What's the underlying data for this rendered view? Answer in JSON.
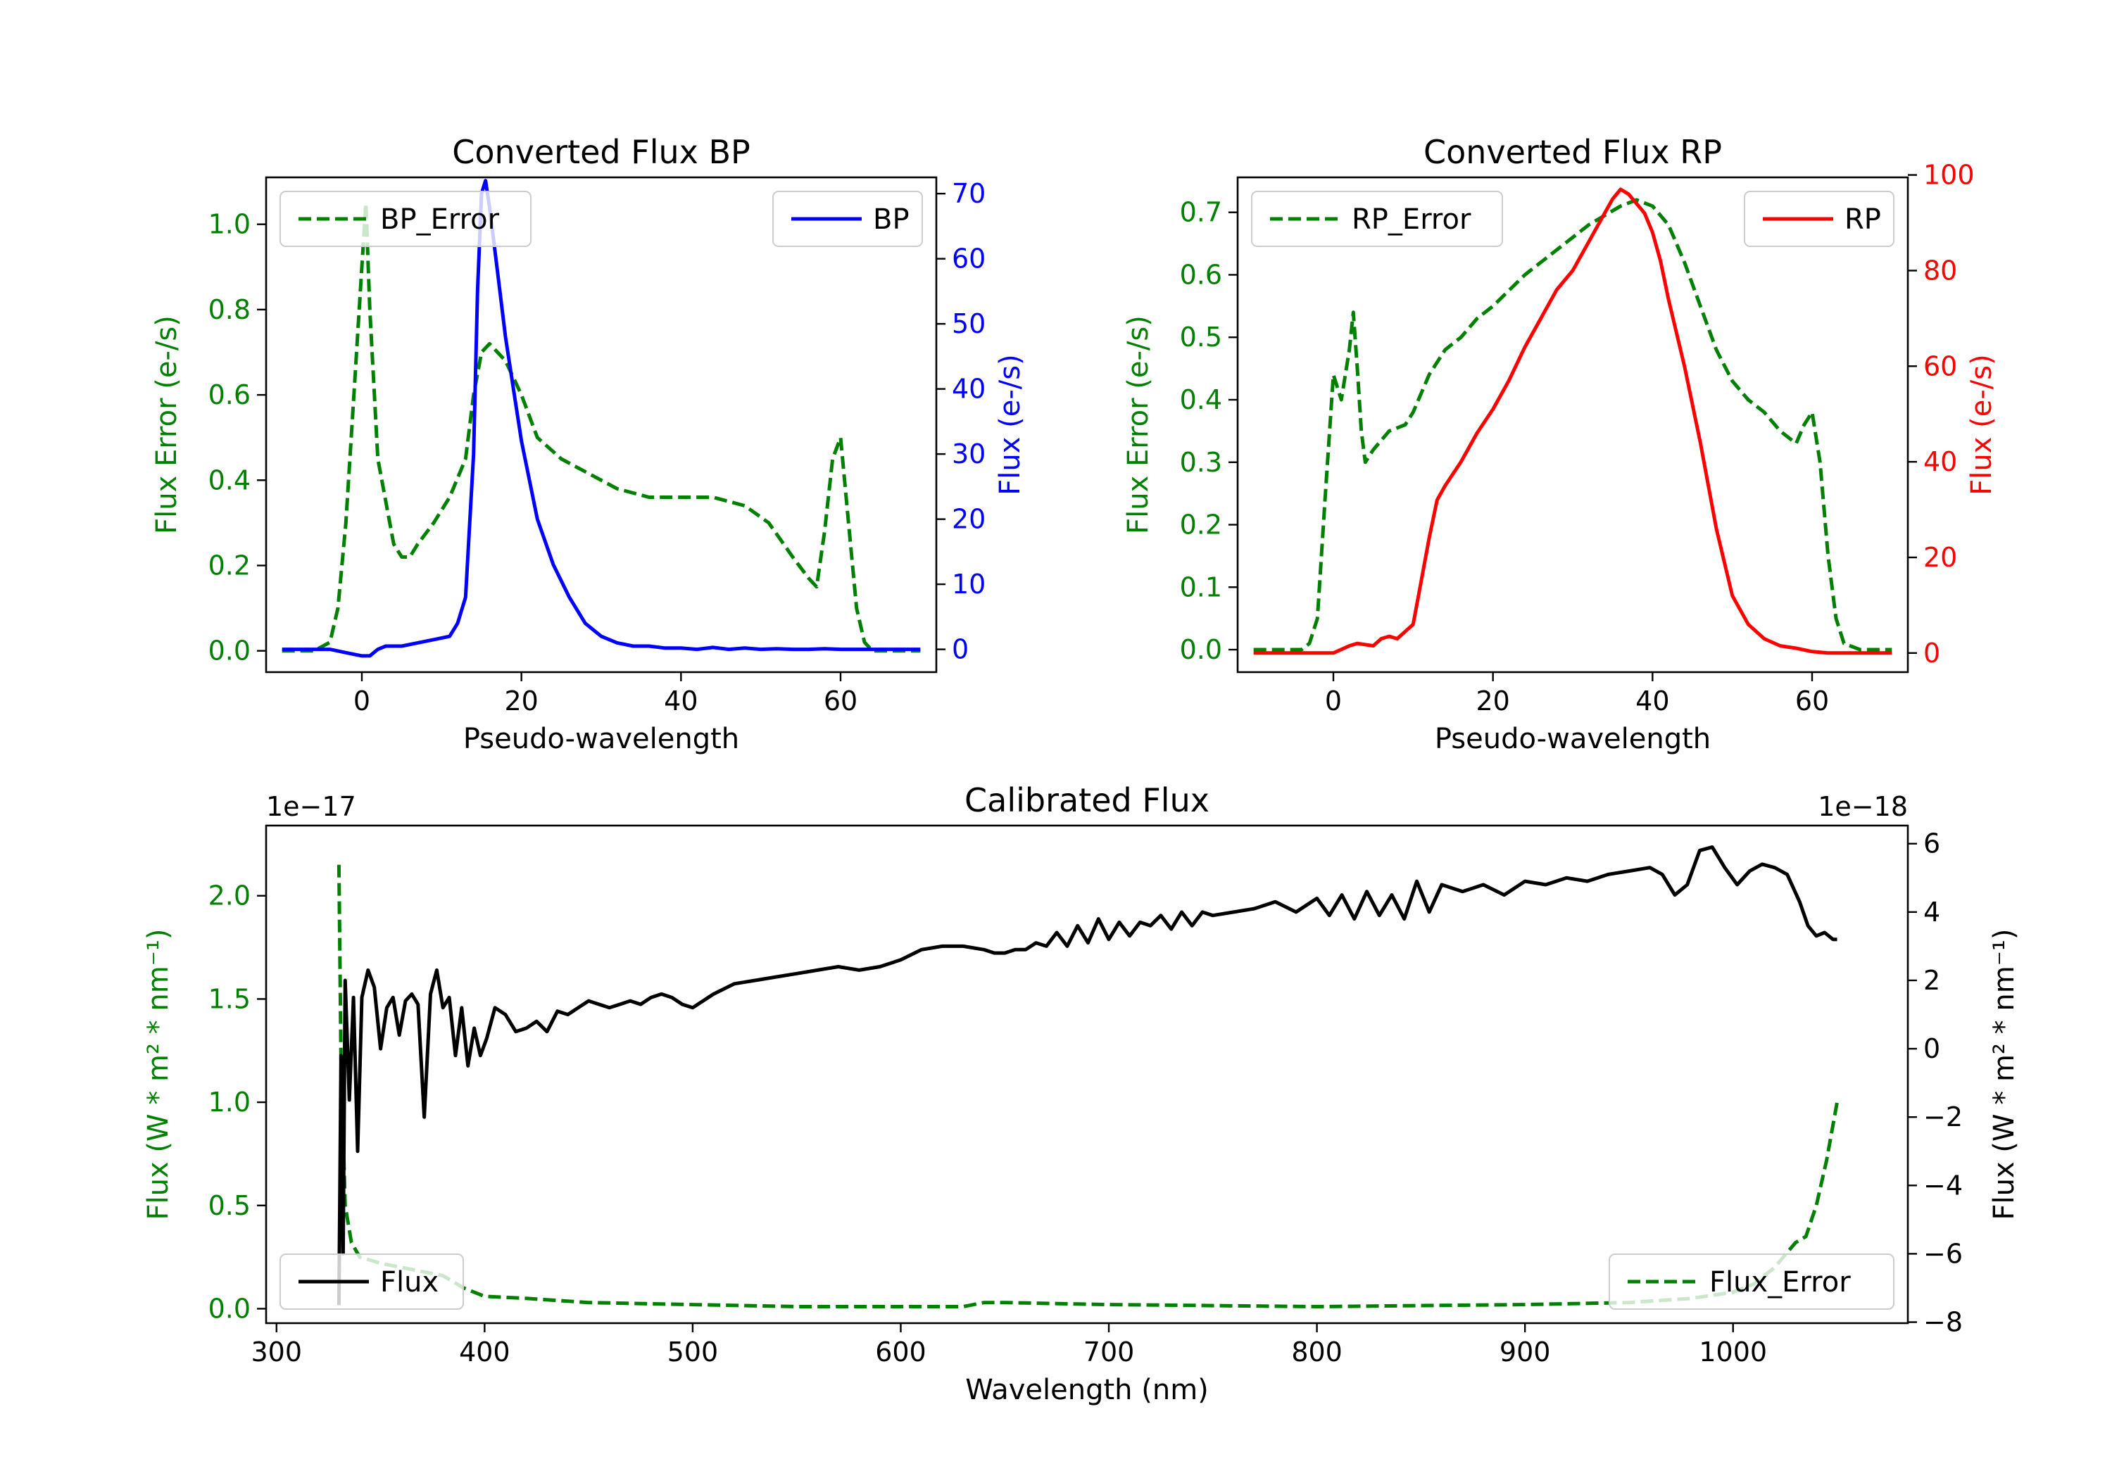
{
  "colors": {
    "error": "#008000",
    "bp": "#0000ff",
    "rp": "#ff0000",
    "flux": "#000000"
  },
  "chart_data": [
    {
      "id": "bp",
      "type": "line",
      "title": "Converted Flux BP",
      "xlabel": "Pseudo-wavelength",
      "ylabel_left": "Flux Error (e-/s)",
      "ylabel_right": "Flux (e-/s)",
      "xlim": [
        -12,
        72
      ],
      "ylim_left": [
        -0.05,
        1.11
      ],
      "ylim_right": [
        -3.5,
        72.5
      ],
      "xticks": [
        0,
        20,
        40,
        60
      ],
      "yticks_left": [
        0.0,
        0.2,
        0.4,
        0.6,
        0.8,
        1.0
      ],
      "yticks_left_labels": [
        "0.0",
        "0.2",
        "0.4",
        "0.6",
        "0.8",
        "1.0"
      ],
      "yticks_right": [
        0,
        10,
        20,
        30,
        40,
        50,
        60,
        70
      ],
      "legend_left": {
        "label": "BP_Error",
        "position": "upper left"
      },
      "legend_right": {
        "label": "BP",
        "position": "upper right"
      },
      "series": [
        {
          "name": "BP_Error",
          "axis": "left",
          "style": "dashed",
          "color": "#008000",
          "x": [
            -10,
            -6,
            -4,
            -3,
            -2,
            -1,
            0,
            0.5,
            1,
            2,
            3,
            4,
            5,
            6,
            7,
            9,
            11,
            13,
            14,
            15,
            16,
            17,
            18,
            20,
            22,
            25,
            28,
            32,
            36,
            40,
            44,
            48,
            51,
            54,
            56,
            57,
            58,
            59,
            60,
            61,
            62,
            63,
            64,
            66,
            68,
            70
          ],
          "y": [
            0.0,
            0.0,
            0.02,
            0.1,
            0.3,
            0.6,
            0.9,
            1.05,
            0.8,
            0.45,
            0.35,
            0.25,
            0.22,
            0.22,
            0.25,
            0.3,
            0.36,
            0.45,
            0.6,
            0.7,
            0.72,
            0.7,
            0.68,
            0.6,
            0.5,
            0.45,
            0.42,
            0.38,
            0.36,
            0.36,
            0.36,
            0.34,
            0.3,
            0.22,
            0.17,
            0.15,
            0.28,
            0.45,
            0.5,
            0.3,
            0.1,
            0.02,
            0.0,
            0.0,
            0.0,
            0.0
          ]
        },
        {
          "name": "BP",
          "axis": "right",
          "style": "solid",
          "color": "#0000ff",
          "x": [
            -10,
            -4,
            -2,
            0,
            1,
            2,
            3,
            5,
            7,
            9,
            11,
            12,
            13,
            14,
            14.5,
            15,
            15.5,
            16,
            17,
            18,
            19,
            20,
            22,
            24,
            26,
            28,
            30,
            32,
            34,
            36,
            38,
            40,
            42,
            44,
            46,
            48,
            50,
            52,
            54,
            56,
            58,
            60,
            62,
            64,
            66,
            68,
            70
          ],
          "y": [
            0,
            0,
            -0.5,
            -1,
            -1,
            0,
            0.5,
            0.5,
            1,
            1.5,
            2,
            4,
            8,
            30,
            55,
            70,
            72,
            68,
            58,
            48,
            40,
            32,
            20,
            13,
            8,
            4,
            2,
            1,
            0.5,
            0.5,
            0.2,
            0.2,
            0,
            0.3,
            0,
            0.2,
            0,
            0.1,
            0,
            0,
            0.1,
            0,
            0,
            0,
            0,
            0,
            0
          ]
        }
      ]
    },
    {
      "id": "rp",
      "type": "line",
      "title": "Converted Flux RP",
      "xlabel": "Pseudo-wavelength",
      "ylabel_left": "Flux Error (e-/s)",
      "ylabel_right": "Flux (e-/s)",
      "xlim": [
        -12,
        72
      ],
      "ylim_left": [
        -0.036,
        0.756
      ],
      "ylim_right": [
        -4,
        99.5
      ],
      "xticks": [
        0,
        20,
        40,
        60
      ],
      "yticks_left": [
        0.0,
        0.1,
        0.2,
        0.3,
        0.4,
        0.5,
        0.6,
        0.7
      ],
      "yticks_left_labels": [
        "0.0",
        "0.1",
        "0.2",
        "0.3",
        "0.4",
        "0.5",
        "0.6",
        "0.7"
      ],
      "yticks_right": [
        0,
        20,
        40,
        60,
        80,
        100
      ],
      "legend_left": {
        "label": "RP_Error",
        "position": "upper left"
      },
      "legend_right": {
        "label": "RP",
        "position": "upper right"
      },
      "series": [
        {
          "name": "RP_Error",
          "axis": "left",
          "style": "dashed",
          "color": "#008000",
          "x": [
            -10,
            -6,
            -4,
            -3,
            -2,
            -1,
            0,
            1,
            2,
            2.5,
            3,
            3.5,
            4,
            5,
            7,
            9,
            10,
            12,
            14,
            16,
            18,
            20,
            24,
            28,
            32,
            36,
            38,
            40,
            42,
            44,
            46,
            48,
            50,
            52,
            54,
            56,
            57,
            58,
            59,
            60,
            61,
            62,
            63,
            64,
            66,
            68,
            70
          ],
          "y": [
            0.0,
            0.0,
            0.0,
            0.01,
            0.05,
            0.25,
            0.44,
            0.4,
            0.48,
            0.54,
            0.45,
            0.35,
            0.3,
            0.32,
            0.35,
            0.36,
            0.38,
            0.44,
            0.48,
            0.5,
            0.53,
            0.55,
            0.6,
            0.64,
            0.68,
            0.71,
            0.72,
            0.71,
            0.68,
            0.62,
            0.55,
            0.48,
            0.43,
            0.4,
            0.38,
            0.35,
            0.34,
            0.33,
            0.36,
            0.38,
            0.3,
            0.15,
            0.05,
            0.01,
            0.0,
            0.0,
            0.0
          ]
        },
        {
          "name": "RP",
          "axis": "right",
          "style": "solid",
          "color": "#ff0000",
          "x": [
            -10,
            -4,
            0,
            2,
            3,
            5,
            6,
            7,
            8,
            10,
            11,
            12,
            13,
            14,
            16,
            18,
            20,
            22,
            24,
            26,
            28,
            30,
            32,
            34,
            35,
            36,
            37,
            38,
            39,
            40,
            41,
            42,
            44,
            46,
            48,
            50,
            52,
            54,
            56,
            58,
            60,
            62,
            64,
            66,
            68,
            70
          ],
          "y": [
            0,
            0,
            0,
            1.5,
            2,
            1.5,
            3,
            3.5,
            3,
            6,
            15,
            24,
            32,
            35,
            40,
            46,
            51,
            57,
            64,
            70,
            76,
            80,
            86,
            92,
            95,
            97,
            96,
            94,
            92,
            88,
            82,
            74,
            60,
            44,
            26,
            12,
            6,
            3,
            1.5,
            1,
            0.3,
            0,
            0,
            0,
            0,
            0
          ]
        }
      ]
    },
    {
      "id": "calibrated",
      "type": "line",
      "title": "Calibrated Flux",
      "xlabel": "Wavelength (nm)",
      "ylabel_left": "Flux (W * m² * nm⁻¹)",
      "ylabel_right": "Flux (W * m² * nm⁻¹)",
      "offset_left": "1e−17",
      "offset_right": "1e−18",
      "xlim": [
        295,
        1084
      ],
      "ylim_left": [
        -0.07,
        2.34
      ],
      "ylim_right": [
        -8.03,
        6.53
      ],
      "xticks": [
        300,
        400,
        500,
        600,
        700,
        800,
        900,
        1000
      ],
      "yticks_left": [
        0.0,
        0.5,
        1.0,
        1.5,
        2.0
      ],
      "yticks_left_labels": [
        "0.0",
        "0.5",
        "1.0",
        "1.5",
        "2.0"
      ],
      "yticks_right": [
        -8,
        -6,
        -4,
        -2,
        0,
        2,
        4,
        6
      ],
      "yticks_right_labels": [
        "−8",
        "−6",
        "−4",
        "−2",
        "0",
        "2",
        "4",
        "6"
      ],
      "legend_left": {
        "label": "Flux",
        "position": "lower left"
      },
      "legend_right": {
        "label": "Flux_Error",
        "position": "lower right"
      },
      "series": [
        {
          "name": "Flux_Error",
          "axis": "left",
          "style": "dashed",
          "color": "#008000",
          "x": [
            330,
            331,
            333,
            336,
            340,
            350,
            360,
            370,
            380,
            390,
            400,
            420,
            450,
            500,
            550,
            600,
            630,
            640,
            650,
            700,
            800,
            900,
            950,
            980,
            1000,
            1010,
            1020,
            1030,
            1035,
            1040,
            1045,
            1050
          ],
          "y": [
            2.15,
            1.2,
            0.5,
            0.32,
            0.25,
            0.22,
            0.2,
            0.18,
            0.16,
            0.1,
            0.06,
            0.05,
            0.03,
            0.02,
            0.01,
            0.01,
            0.01,
            0.03,
            0.03,
            0.02,
            0.01,
            0.02,
            0.03,
            0.05,
            0.08,
            0.12,
            0.2,
            0.32,
            0.35,
            0.5,
            0.72,
            1.0
          ]
        },
        {
          "name": "Flux",
          "axis": "right",
          "style": "solid",
          "color": "#000000",
          "x": [
            330,
            331,
            332,
            333,
            335,
            337,
            339,
            341,
            344,
            347,
            350,
            353,
            356,
            359,
            362,
            365,
            368,
            371,
            374,
            377,
            380,
            383,
            386,
            389,
            392,
            395,
            398,
            401,
            405,
            410,
            415,
            420,
            425,
            430,
            435,
            440,
            445,
            450,
            455,
            460,
            465,
            470,
            475,
            480,
            485,
            490,
            495,
            500,
            510,
            520,
            530,
            540,
            550,
            560,
            570,
            580,
            590,
            600,
            610,
            620,
            630,
            640,
            645,
            650,
            655,
            660,
            665,
            670,
            675,
            680,
            685,
            690,
            695,
            700,
            705,
            710,
            715,
            720,
            725,
            730,
            735,
            740,
            745,
            750,
            760,
            770,
            780,
            790,
            800,
            806,
            812,
            818,
            824,
            830,
            836,
            842,
            848,
            854,
            860,
            870,
            880,
            890,
            900,
            910,
            920,
            930,
            940,
            950,
            960,
            966,
            972,
            978,
            984,
            990,
            996,
            1002,
            1008,
            1014,
            1020,
            1026,
            1032,
            1036,
            1040,
            1044,
            1048,
            1050
          ],
          "y": [
            -7.5,
            -0.2,
            -6,
            2.0,
            -1.5,
            1.5,
            -3.0,
            1.5,
            2.3,
            1.8,
            0.0,
            1.2,
            1.5,
            0.4,
            1.4,
            1.6,
            1.3,
            -2.0,
            1.6,
            2.3,
            1.2,
            1.5,
            -0.2,
            1.2,
            -0.5,
            0.6,
            -0.2,
            0.3,
            1.2,
            1.0,
            0.5,
            0.6,
            0.8,
            0.5,
            1.1,
            1.0,
            1.2,
            1.4,
            1.3,
            1.2,
            1.3,
            1.4,
            1.3,
            1.5,
            1.6,
            1.5,
            1.3,
            1.2,
            1.6,
            1.9,
            2.0,
            2.1,
            2.2,
            2.3,
            2.4,
            2.3,
            2.4,
            2.6,
            2.9,
            3.0,
            3.0,
            2.9,
            2.8,
            2.8,
            2.9,
            2.9,
            3.1,
            3.0,
            3.4,
            3.0,
            3.6,
            3.1,
            3.8,
            3.2,
            3.7,
            3.3,
            3.7,
            3.6,
            3.9,
            3.5,
            4.0,
            3.6,
            4.0,
            3.9,
            4.0,
            4.1,
            4.3,
            4.0,
            4.4,
            3.9,
            4.5,
            3.8,
            4.6,
            3.9,
            4.5,
            3.8,
            4.9,
            4.0,
            4.8,
            4.6,
            4.8,
            4.5,
            4.9,
            4.8,
            5.0,
            4.9,
            5.1,
            5.2,
            5.3,
            5.1,
            4.5,
            4.8,
            5.8,
            5.9,
            5.3,
            4.8,
            5.2,
            5.4,
            5.3,
            5.1,
            4.3,
            3.6,
            3.3,
            3.4,
            3.2,
            3.2
          ]
        }
      ]
    }
  ]
}
